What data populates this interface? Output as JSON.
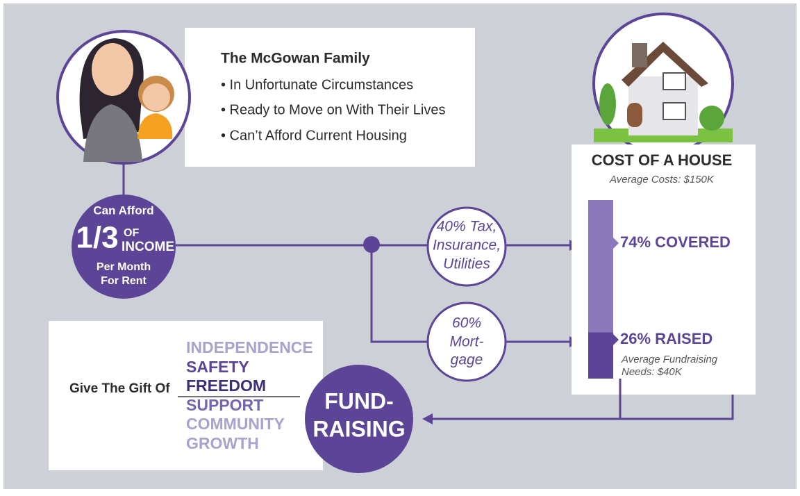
{
  "family": {
    "title": "The McGowan Family",
    "points": [
      "• In Unfortunate Circumstances",
      "• Ready to Move on With Their Lives",
      "• Can’t Afford Current Housing"
    ]
  },
  "afford": {
    "top": "Can Afford",
    "fraction": "1/3",
    "of": "OF",
    "income": "INCOME",
    "line1": "Per Month",
    "line2": "For Rent"
  },
  "split": {
    "costs": [
      "40% Tax,",
      "Insurance,",
      "Utilities"
    ],
    "mortgage": [
      "60%",
      "Mort-",
      "gage"
    ]
  },
  "house": {
    "title": "COST OF A HOUSE",
    "subtitle": "Average Costs: $150K",
    "covered": {
      "value": 74,
      "label": "74% COVERED"
    },
    "raised": {
      "value": 26,
      "label": "26% RAISED"
    },
    "note": [
      "Average Fundraising",
      "Needs: $40K"
    ]
  },
  "gift": {
    "lead": "Give The Gift Of",
    "words": [
      "INDEPENDENCE",
      "SAFETY",
      "FREEDOM",
      "SUPPORT",
      "COMMUNITY",
      "GROWTH"
    ]
  },
  "fundraising": [
    "FUND-",
    "RAISING"
  ]
}
